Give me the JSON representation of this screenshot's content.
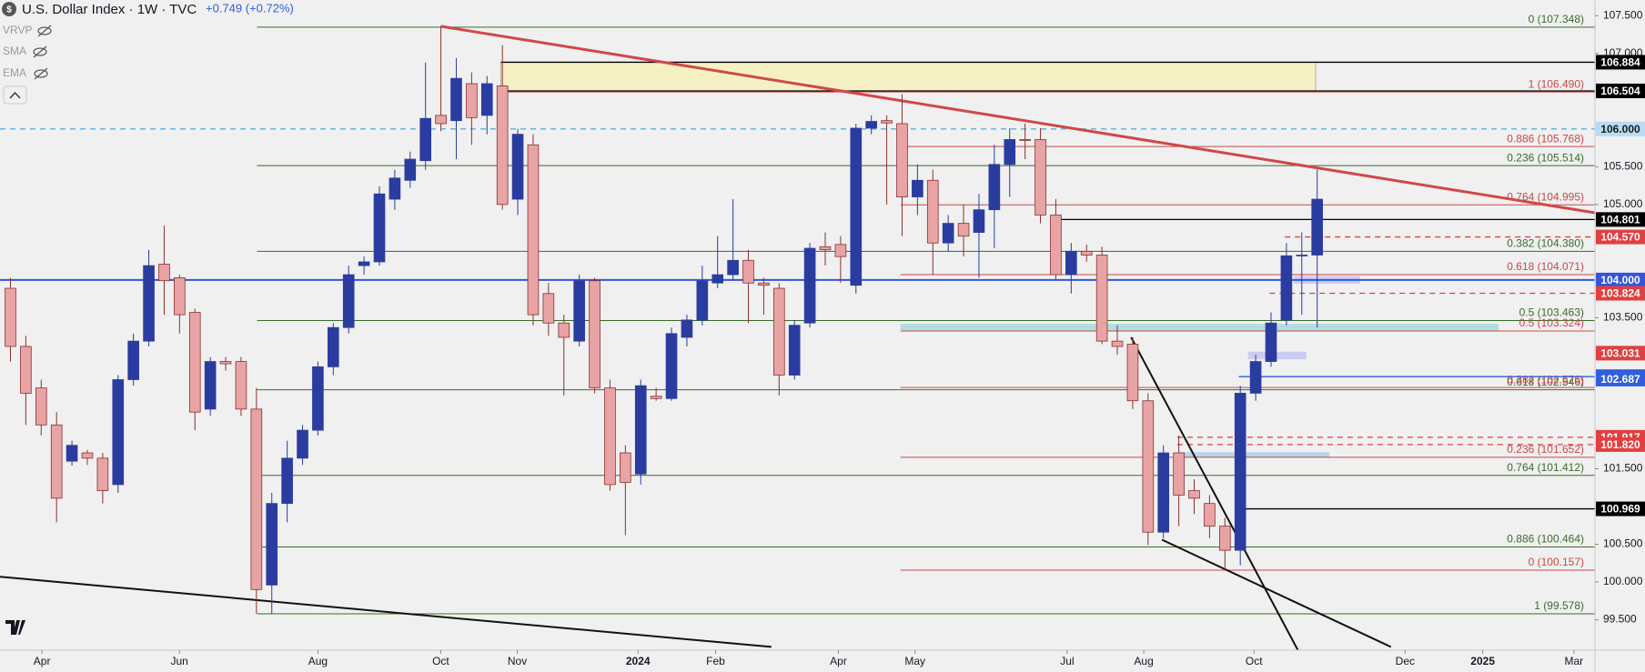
{
  "chart_data": {
    "type": "candlestick",
    "title": "U.S. Dollar Index · 1W · TVC",
    "change": "+0.749 (+0.72%)",
    "indicators": [
      "VRVP",
      "SMA",
      "EMA"
    ],
    "up_color": "#2b3ca0",
    "down_color": "#e8a4a4",
    "down_edge": "#8a3030",
    "xlim": [
      -0.68,
      103.07
    ],
    "ylim": [
      99.097,
      107.708
    ],
    "xticks": [
      {
        "value": 2.05,
        "label": "Apr"
      },
      {
        "value": 10.99,
        "label": "Jun"
      },
      {
        "value": 20.0,
        "label": "Aug"
      },
      {
        "value": 27.99,
        "label": "Oct"
      },
      {
        "value": 32.97,
        "label": "Nov"
      },
      {
        "value": 40.82,
        "label": "2024"
      },
      {
        "value": 45.87,
        "label": "Feb"
      },
      {
        "value": 53.86,
        "label": "Apr"
      },
      {
        "value": 58.84,
        "label": "May"
      },
      {
        "value": 68.74,
        "label": "Jul"
      },
      {
        "value": 73.72,
        "label": "Aug"
      },
      {
        "value": 80.89,
        "label": "Oct"
      },
      {
        "value": 90.72,
        "label": "Dec"
      },
      {
        "value": 95.77,
        "label": "2025"
      },
      {
        "value": 101.7,
        "label": "Mar"
      }
    ],
    "yticks": [
      {
        "value": 107.5,
        "label": "107.500"
      },
      {
        "value": 107.0,
        "label": "107.000"
      },
      {
        "value": 105.5,
        "label": "105.500"
      },
      {
        "value": 105.0,
        "label": "105.000"
      },
      {
        "value": 103.5,
        "label": "103.500"
      },
      {
        "value": 101.5,
        "label": "101.500"
      },
      {
        "value": 100.5,
        "label": "100.500"
      },
      {
        "value": 100.0,
        "label": "100.000"
      },
      {
        "value": 99.5,
        "label": "99.500"
      }
    ],
    "x": [
      0,
      1,
      2,
      3,
      4,
      5,
      6,
      7,
      8,
      9,
      10,
      11,
      12,
      13,
      14,
      15,
      16,
      17,
      18,
      19,
      20,
      21,
      22,
      23,
      24,
      25,
      26,
      27,
      28,
      29,
      30,
      31,
      32,
      33,
      34,
      35,
      36,
      37,
      38,
      39,
      40,
      41,
      42,
      43,
      44,
      45,
      46,
      47,
      48,
      49,
      50,
      51,
      52,
      53,
      54,
      55,
      56,
      57,
      58,
      59,
      60,
      61,
      62,
      63,
      64,
      65,
      66,
      67,
      68,
      69,
      70,
      71,
      72,
      73,
      74,
      75,
      76,
      77,
      78,
      79,
      80,
      81,
      82,
      83,
      84,
      85
    ],
    "ohlc": [
      [
        103.89,
        104.03,
        102.92,
        103.12
      ],
      [
        103.12,
        103.26,
        102.08,
        102.5
      ],
      [
        102.57,
        102.68,
        101.94,
        102.08
      ],
      [
        102.08,
        102.25,
        100.79,
        101.11
      ],
      [
        101.6,
        101.87,
        101.54,
        101.81
      ],
      [
        101.71,
        101.75,
        101.55,
        101.64
      ],
      [
        101.64,
        101.71,
        101.04,
        101.21
      ],
      [
        101.29,
        102.74,
        101.18,
        102.68
      ],
      [
        102.68,
        103.29,
        102.6,
        103.19
      ],
      [
        103.19,
        104.4,
        103.12,
        104.19
      ],
      [
        104.21,
        104.72,
        103.54,
        103.99
      ],
      [
        104.03,
        104.07,
        103.29,
        103.54
      ],
      [
        103.57,
        103.62,
        102.01,
        102.25
      ],
      [
        102.29,
        102.98,
        102.2,
        102.92
      ],
      [
        102.92,
        102.98,
        102.8,
        102.89
      ],
      [
        102.92,
        102.98,
        102.2,
        102.29
      ],
      [
        102.29,
        102.57,
        99.58,
        99.9
      ],
      [
        99.96,
        101.18,
        99.58,
        101.04
      ],
      [
        101.04,
        101.87,
        100.79,
        101.64
      ],
      [
        101.64,
        102.08,
        101.55,
        102.01
      ],
      [
        102.01,
        102.92,
        101.94,
        102.85
      ],
      [
        102.85,
        103.43,
        102.74,
        103.37
      ],
      [
        103.37,
        104.19,
        103.29,
        104.07
      ],
      [
        104.19,
        104.31,
        104.07,
        104.24
      ],
      [
        104.24,
        105.24,
        104.19,
        105.14
      ],
      [
        105.07,
        105.46,
        104.93,
        105.35
      ],
      [
        105.32,
        105.7,
        105.22,
        105.6
      ],
      [
        105.58,
        106.88,
        105.46,
        106.14
      ],
      [
        106.18,
        107.36,
        105.97,
        106.07
      ],
      [
        106.11,
        106.94,
        105.6,
        106.67
      ],
      [
        106.6,
        106.75,
        105.79,
        106.15
      ],
      [
        106.18,
        106.7,
        105.93,
        106.6
      ],
      [
        106.57,
        107.11,
        104.93,
        105.0
      ],
      [
        105.07,
        106.0,
        104.86,
        105.93
      ],
      [
        105.79,
        105.93,
        103.4,
        103.54
      ],
      [
        103.82,
        103.96,
        103.26,
        103.43
      ],
      [
        103.43,
        103.54,
        102.47,
        103.24
      ],
      [
        103.19,
        104.07,
        103.12,
        103.99
      ],
      [
        103.99,
        104.03,
        102.5,
        102.57
      ],
      [
        102.57,
        102.68,
        101.21,
        101.29
      ],
      [
        101.71,
        101.81,
        100.62,
        101.32
      ],
      [
        101.43,
        102.68,
        101.29,
        102.6
      ],
      [
        102.46,
        102.57,
        102.4,
        102.43
      ],
      [
        102.43,
        103.37,
        102.4,
        103.29
      ],
      [
        103.24,
        103.54,
        103.12,
        103.47
      ],
      [
        103.47,
        104.19,
        103.4,
        103.99
      ],
      [
        103.96,
        104.58,
        103.89,
        104.07
      ],
      [
        104.07,
        105.07,
        103.99,
        104.26
      ],
      [
        104.26,
        104.4,
        103.43,
        103.96
      ],
      [
        103.96,
        104.03,
        103.54,
        103.93
      ],
      [
        103.89,
        103.96,
        102.47,
        102.74
      ],
      [
        102.74,
        103.47,
        102.68,
        103.4
      ],
      [
        103.43,
        104.49,
        103.37,
        104.42
      ],
      [
        104.44,
        104.63,
        104.19,
        104.4
      ],
      [
        104.47,
        104.58,
        103.96,
        104.31
      ],
      [
        103.93,
        106.07,
        103.82,
        106.01
      ],
      [
        106.01,
        106.18,
        105.93,
        106.1
      ],
      [
        106.11,
        106.18,
        105.0,
        106.08
      ],
      [
        106.07,
        106.46,
        104.58,
        105.1
      ],
      [
        105.1,
        105.53,
        104.86,
        105.32
      ],
      [
        105.32,
        105.46,
        104.07,
        104.49
      ],
      [
        104.49,
        104.86,
        104.38,
        104.75
      ],
      [
        104.75,
        105.0,
        104.31,
        104.58
      ],
      [
        104.63,
        105.14,
        104.03,
        104.93
      ],
      [
        104.93,
        105.79,
        104.42,
        105.53
      ],
      [
        105.53,
        106.01,
        105.1,
        105.86
      ],
      [
        105.86,
        106.07,
        105.6,
        105.85
      ],
      [
        105.86,
        106.01,
        104.75,
        104.86
      ],
      [
        104.86,
        105.07,
        103.99,
        104.07
      ],
      [
        104.07,
        104.49,
        103.82,
        104.38
      ],
      [
        104.38,
        104.47,
        104.24,
        104.33
      ],
      [
        104.33,
        104.44,
        103.15,
        103.19
      ],
      [
        103.19,
        103.4,
        103.01,
        103.12
      ],
      [
        103.15,
        103.24,
        102.29,
        102.4
      ],
      [
        102.4,
        102.5,
        100.49,
        100.66
      ],
      [
        100.66,
        101.81,
        100.58,
        101.71
      ],
      [
        101.71,
        101.94,
        100.74,
        101.15
      ],
      [
        101.21,
        101.36,
        100.9,
        101.11
      ],
      [
        101.04,
        101.15,
        100.58,
        100.74
      ],
      [
        100.74,
        100.85,
        100.16,
        100.42
      ],
      [
        100.42,
        102.6,
        100.22,
        102.5
      ],
      [
        102.5,
        103.01,
        102.4,
        102.92
      ],
      [
        102.92,
        103.57,
        102.85,
        103.43
      ],
      [
        103.47,
        104.49,
        103.4,
        104.32
      ],
      [
        104.32,
        104.63,
        103.54,
        104.33
      ],
      [
        104.33,
        105.46,
        103.37,
        105.07
      ]
    ],
    "fib_levels": [
      {
        "label": "0 (107.348)",
        "value": 107.348,
        "x_from": 16.04,
        "color": "#3b6b2a"
      },
      {
        "label": "0.236 (105.514)",
        "value": 105.514,
        "x_from": 16.04,
        "color": "#3b6b2a"
      },
      {
        "label": "0.382 (104.380)",
        "value": 104.38,
        "x_from": 16.04,
        "color": "#3b6b2a"
      },
      {
        "label": "0.5 (103.463)",
        "value": 103.463,
        "x_from": 16.04,
        "color": "#3b6b2a"
      },
      {
        "label": "0.618 (102.546)",
        "value": 102.546,
        "x_from": 16.04,
        "color": "#3b6b2a"
      },
      {
        "label": "0.764 (101.412)",
        "value": 101.412,
        "x_from": 16.04,
        "color": "#3b6b2a"
      },
      {
        "label": "0.886 (100.464)",
        "value": 100.464,
        "x_from": 16.04,
        "color": "#3b6b2a"
      },
      {
        "label": "1 (99.578)",
        "value": 99.578,
        "x_from": 16.04,
        "color": "#3b6b2a"
      },
      {
        "label": "1 (106.490)",
        "value": 106.49,
        "x_from": 31.9,
        "color": "#c84848"
      },
      {
        "label": "0.886 (105.768)",
        "value": 105.768,
        "x_from": 57.9,
        "color": "#c84848"
      },
      {
        "label": "0.764 (104.995)",
        "value": 104.995,
        "x_from": 57.9,
        "color": "#c84848"
      },
      {
        "label": "0.618 (104.071)",
        "value": 104.071,
        "x_from": 57.9,
        "color": "#c84848"
      },
      {
        "label": "0.5 (103.324)",
        "value": 103.324,
        "x_from": 57.9,
        "color": "#c84848"
      },
      {
        "label": "0.382 (102.576)",
        "value": 102.576,
        "x_from": 57.9,
        "color": "#c84848"
      },
      {
        "label": "0.236 (101.652)",
        "value": 101.652,
        "x_from": 57.9,
        "color": "#c84848"
      },
      {
        "label": "0 (100.157)",
        "value": 100.157,
        "x_from": 57.9,
        "color": "#c84848"
      }
    ],
    "price_tags": [
      {
        "value": 106.884,
        "label": "106.884",
        "color": "#000000",
        "x_from": 31.9
      },
      {
        "value": 106.504,
        "label": "106.504",
        "color": "#000000",
        "x_from": 31.9
      },
      {
        "value": 106.0,
        "label": "106.000",
        "color": "#b8dcf0",
        "text_color": "#1a1a1a",
        "x_from": -0.68,
        "dash": true
      },
      {
        "value": 104.801,
        "label": "104.801",
        "color": "#000000",
        "x_from": 67.9
      },
      {
        "value": 104.57,
        "label": "104.570",
        "color": "#e04040",
        "x_from": 82.9,
        "dash": true
      },
      {
        "value": 104.0,
        "label": "104.000",
        "color": "#3355dd",
        "x_from": -0.68
      },
      {
        "value": 103.824,
        "label": "103.824",
        "color": "#e04040",
        "x_from": 81.9,
        "dash": true
      },
      {
        "value": 103.031,
        "label": "103.031",
        "color": "#e04040"
      },
      {
        "value": 102.72,
        "label": "102.720",
        "color": "#2f5fe0",
        "x_from": 79.9
      },
      {
        "value": 102.687,
        "label": "102.687",
        "color": "#2f5fe0"
      },
      {
        "value": 101.917,
        "label": "101.917",
        "color": "#e04040",
        "x_from": 75.9,
        "dash": true
      },
      {
        "value": 101.82,
        "label": "101.820",
        "color": "#e04040",
        "x_from": 75.9,
        "dash": true
      },
      {
        "value": 100.969,
        "label": "100.969",
        "color": "#000000",
        "x_from": 79.9
      }
    ],
    "trendlines": [
      {
        "color": "#d04848",
        "width": 3,
        "points": [
          [
            27.99,
            107.36
          ],
          [
            103.07,
            104.89
          ]
        ]
      },
      {
        "color": "#111111",
        "width": 2,
        "points": [
          [
            -0.68,
            100.07
          ],
          [
            49.5,
            99.14
          ]
        ]
      },
      {
        "color": "#111111",
        "width": 2,
        "points": [
          [
            72.9,
            103.24
          ],
          [
            84.5,
            98.81
          ]
        ]
      },
      {
        "color": "#111111",
        "width": 2,
        "points": [
          [
            74.9,
            100.56
          ],
          [
            89.8,
            99.14
          ]
        ]
      }
    ],
    "zones": [
      {
        "from": [
          31.9,
          106.504
        ],
        "to": [
          84.9,
          106.884
        ],
        "color": "#f6f1c4"
      },
      {
        "from": [
          57.9,
          103.324
        ],
        "to": [
          96.8,
          103.42
        ],
        "color": "#b4dde2"
      },
      {
        "from": [
          75.9,
          101.65
        ],
        "to": [
          85.8,
          101.72
        ],
        "color": "#b4d6ea"
      },
      {
        "from": [
          83.5,
          103.95
        ],
        "to": [
          87.8,
          104.05
        ],
        "color": "#ccccf2"
      },
      {
        "from": [
          80.5,
          102.95
        ],
        "to": [
          84.3,
          103.05
        ],
        "color": "#ccccf2"
      }
    ]
  }
}
